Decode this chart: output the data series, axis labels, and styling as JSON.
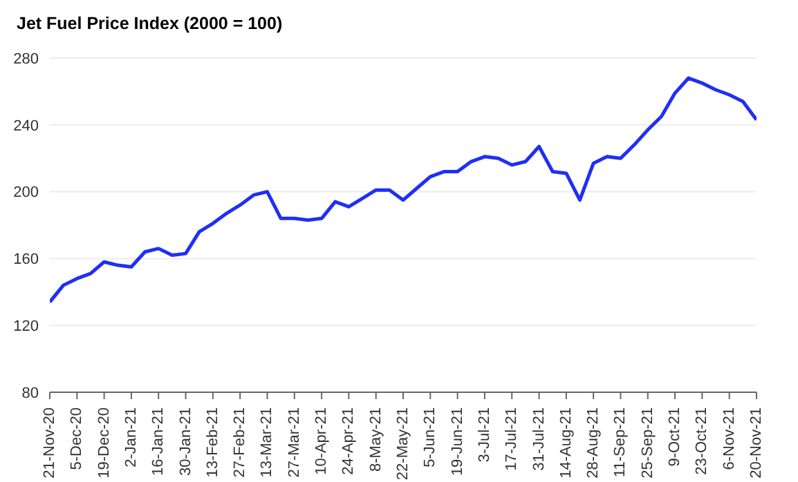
{
  "chart_data": {
    "type": "line",
    "title": "Jet Fuel Price Index (2000 = 100)",
    "categories": [
      "21-Nov-20",
      null,
      "5-Dec-20",
      null,
      "19-Dec-20",
      null,
      "2-Jan-21",
      null,
      "16-Jan-21",
      null,
      "30-Jan-21",
      null,
      "13-Feb-21",
      null,
      "27-Feb-21",
      null,
      "13-Mar-21",
      null,
      "27-Mar-21",
      null,
      "10-Apr-21",
      null,
      "24-Apr-21",
      null,
      "8-May-21",
      null,
      "22-May-21",
      null,
      "5-Jun-21",
      null,
      "19-Jun-21",
      null,
      "3-Jul-21",
      null,
      "17-Jul-21",
      null,
      "31-Jul-21",
      null,
      "14-Aug-21",
      null,
      "28-Aug-21",
      null,
      "11-Sep-21",
      null,
      "25-Sep-21",
      null,
      "9-Oct-21",
      null,
      "23-Oct-21",
      null,
      "6-Nov-21",
      null,
      "20-Nov-21"
    ],
    "series": [
      {
        "color": "#1f2ff5",
        "values": [
          134,
          144,
          148,
          151,
          158,
          156,
          155,
          164,
          166,
          162,
          163,
          176,
          181,
          187,
          192,
          198,
          200,
          184,
          184,
          183,
          184,
          194,
          191,
          196,
          201,
          201,
          195,
          202,
          209,
          212,
          212,
          218,
          221,
          220,
          216,
          218,
          227,
          212,
          211,
          195,
          217,
          221,
          220,
          228,
          237,
          245,
          259,
          268,
          265,
          261,
          258,
          254,
          243
        ]
      }
    ],
    "ylim": [
      80,
      280
    ],
    "yticks": [
      80,
      120,
      160,
      200,
      240,
      280
    ],
    "grid": "y",
    "legend": false,
    "marker": "none",
    "line_style": "solid"
  }
}
